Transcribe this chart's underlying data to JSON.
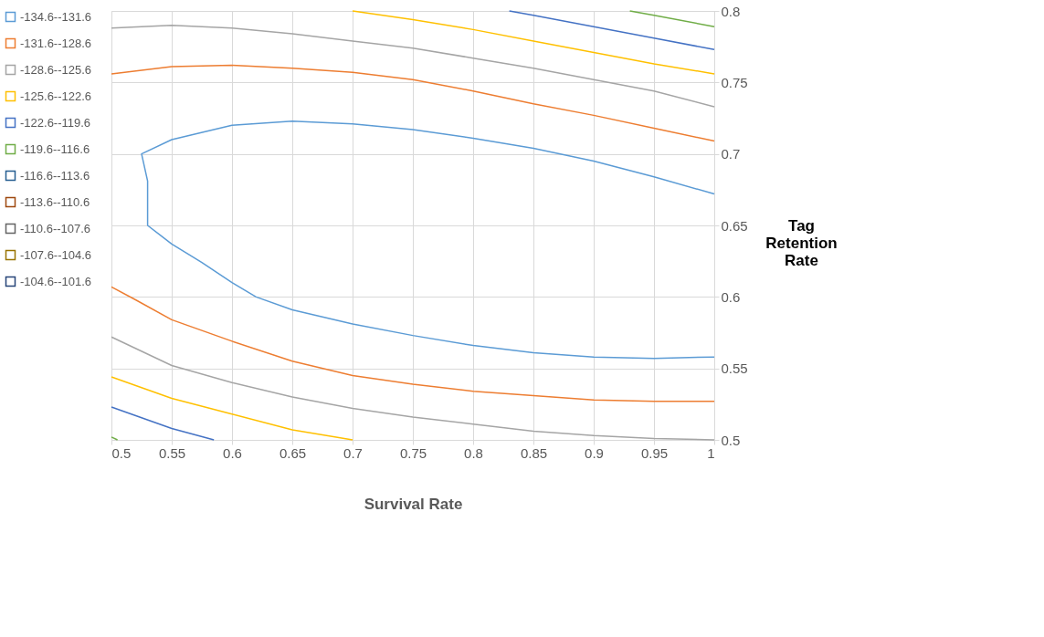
{
  "chart_data": {
    "type": "line",
    "xlabel": "Survival Rate",
    "ylabel": "Tag Retention Rate",
    "xlim": [
      0.5,
      1
    ],
    "xticks": [
      0.5,
      0.55,
      0.6,
      0.65,
      0.7,
      0.75,
      0.8,
      0.85,
      0.9,
      0.95,
      1
    ],
    "ylim": [
      0.5,
      0.8
    ],
    "yticks": [
      0.5,
      0.55,
      0.6,
      0.65,
      0.7,
      0.75,
      0.8
    ],
    "grid": true,
    "legend": "left",
    "marker": "none",
    "line_style": "solid",
    "series": [
      {
        "name": "-134.6--131.6",
        "color": "#5b9bd5",
        "x": [
          1,
          0.95,
          0.9,
          0.85,
          0.8,
          0.75,
          0.7,
          0.65,
          0.6,
          0.55,
          0.525,
          0.53,
          0.53,
          0.55,
          0.575,
          0.6,
          0.62,
          0.65,
          0.7,
          0.75,
          0.8,
          0.85,
          0.9,
          0.95,
          1
        ],
        "values": [
          0.672,
          0.684,
          0.695,
          0.704,
          0.711,
          0.717,
          0.721,
          0.723,
          0.72,
          0.71,
          0.7,
          0.681,
          0.65,
          0.637,
          0.624,
          0.61,
          0.6,
          0.591,
          0.581,
          0.573,
          0.566,
          0.561,
          0.558,
          0.557,
          0.558
        ]
      },
      {
        "name": "-131.6--128.6",
        "color": "#ed7d31",
        "x": [
          0.5,
          0.55,
          0.6,
          0.65,
          0.7,
          0.75,
          0.8,
          0.85,
          0.9,
          0.95,
          1,
          null,
          0.5,
          0.52,
          0.55,
          0.6,
          0.65,
          0.7,
          0.75,
          0.8,
          0.85,
          0.9,
          0.95,
          1
        ],
        "values": [
          0.756,
          0.761,
          0.762,
          0.76,
          0.757,
          0.752,
          0.744,
          0.735,
          0.727,
          0.718,
          0.709,
          null,
          0.607,
          0.598,
          0.584,
          0.569,
          0.555,
          0.545,
          0.539,
          0.534,
          0.531,
          0.528,
          0.527,
          0.527
        ]
      },
      {
        "name": "-128.6--125.6",
        "color": "#a5a5a5",
        "x": [
          0.5,
          0.55,
          0.6,
          0.65,
          0.7,
          0.75,
          0.8,
          0.85,
          0.9,
          0.95,
          1,
          null,
          0.5,
          0.55,
          0.6,
          0.65,
          0.7,
          0.75,
          0.8,
          0.85,
          0.9,
          0.95,
          1
        ],
        "values": [
          0.788,
          0.79,
          0.788,
          0.784,
          0.779,
          0.774,
          0.767,
          0.76,
          0.752,
          0.744,
          0.733,
          null,
          0.572,
          0.552,
          0.54,
          0.53,
          0.522,
          0.516,
          0.511,
          0.506,
          0.503,
          0.501,
          0.5
        ]
      },
      {
        "name": "-125.6--122.6",
        "color": "#ffc000",
        "x": [
          0.7,
          0.75,
          0.8,
          0.85,
          0.9,
          0.95,
          1,
          null,
          0.5,
          0.55,
          0.6,
          0.65,
          0.7
        ],
        "values": [
          0.8,
          0.794,
          0.787,
          0.779,
          0.771,
          0.763,
          0.756,
          null,
          0.544,
          0.529,
          0.518,
          0.507,
          0.5
        ]
      },
      {
        "name": "-122.6--119.6",
        "color": "#4472c4",
        "x": [
          0.83,
          0.85,
          0.9,
          0.95,
          1,
          null,
          0.5,
          0.55,
          0.585
        ],
        "values": [
          0.8,
          0.797,
          0.789,
          0.781,
          0.773,
          null,
          0.523,
          0.508,
          0.5
        ]
      },
      {
        "name": "-119.6--116.6",
        "color": "#70ad47",
        "x": [
          0.93,
          0.95,
          1,
          null,
          0.5,
          0.505
        ],
        "values": [
          0.8,
          0.797,
          0.789,
          null,
          0.502,
          0.5
        ]
      },
      {
        "name": "-116.6--113.6",
        "color": "#255e91"
      },
      {
        "name": "-113.6--110.6",
        "color": "#9e480e"
      },
      {
        "name": "-110.6--107.6",
        "color": "#636363"
      },
      {
        "name": "-107.6--104.6",
        "color": "#997300"
      },
      {
        "name": "-104.6--101.6",
        "color": "#264478"
      }
    ]
  }
}
